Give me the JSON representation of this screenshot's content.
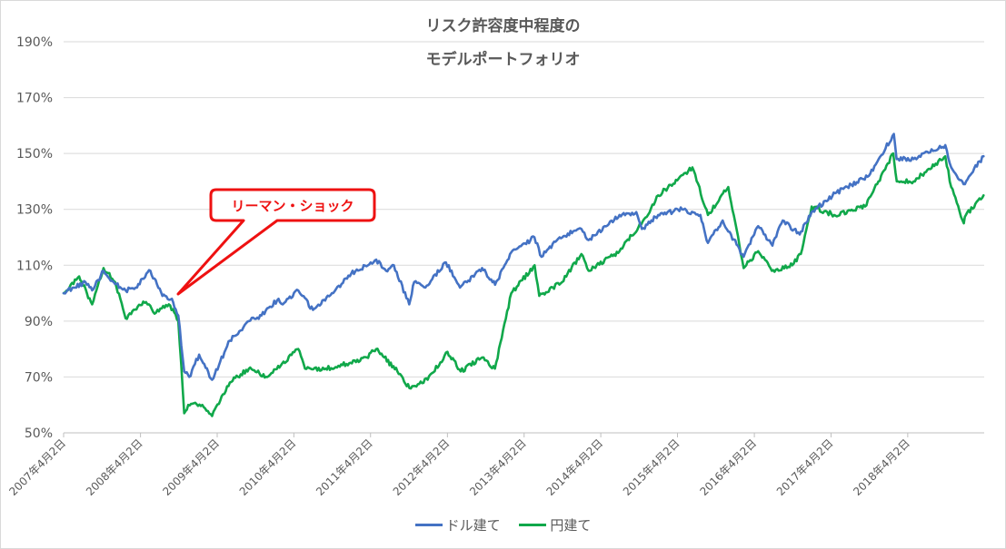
{
  "chart_data": {
    "type": "line",
    "title_lines": [
      "リスク許容度中程度の",
      "モデルポートフォリオ"
    ],
    "y_ticks": [
      "50%",
      "70%",
      "90%",
      "110%",
      "130%",
      "150%",
      "170%",
      "190%"
    ],
    "ylim": [
      50,
      190
    ],
    "x_ticks": [
      "2007年4月2日",
      "2008年4月2日",
      "2009年4月2日",
      "2010年4月2日",
      "2011年4月2日",
      "2012年4月2日",
      "2013年4月2日",
      "2014年4月2日",
      "2015年4月2日",
      "2016年4月2日",
      "2017年4月2日",
      "2018年4月2日"
    ],
    "xlim": [
      "2007-04-02",
      "2019-04-01"
    ],
    "grid": true,
    "legend_position": "bottom",
    "annotation": {
      "text": "リーマン・ショック",
      "color": "#ee1111",
      "date": "2008-09-15"
    },
    "series": [
      {
        "name": "ドル建て",
        "color": "#4472c4",
        "points": [
          [
            "2007-04-02",
            100
          ],
          [
            "2007-05-20",
            102
          ],
          [
            "2007-07-15",
            104
          ],
          [
            "2007-08-16",
            101
          ],
          [
            "2007-10-09",
            108
          ],
          [
            "2007-11-26",
            104
          ],
          [
            "2008-01-22",
            101
          ],
          [
            "2008-03-10",
            102
          ],
          [
            "2008-05-19",
            108
          ],
          [
            "2008-07-15",
            99
          ],
          [
            "2008-08-29",
            98
          ],
          [
            "2008-09-29",
            92
          ],
          [
            "2008-10-27",
            72
          ],
          [
            "2008-11-20",
            70
          ],
          [
            "2009-01-06",
            78
          ],
          [
            "2009-03-09",
            69
          ],
          [
            "2009-06-01",
            83
          ],
          [
            "2009-08-31",
            90
          ],
          [
            "2009-10-30",
            92
          ],
          [
            "2010-01-19",
            98
          ],
          [
            "2010-02-08",
            96
          ],
          [
            "2010-04-23",
            101
          ],
          [
            "2010-07-02",
            94
          ],
          [
            "2010-09-30",
            100
          ],
          [
            "2010-12-31",
            107
          ],
          [
            "2011-04-29",
            112
          ],
          [
            "2011-06-15",
            108
          ],
          [
            "2011-07-22",
            110
          ],
          [
            "2011-10-03",
            96
          ],
          [
            "2011-10-27",
            104
          ],
          [
            "2011-12-19",
            102
          ],
          [
            "2012-03-26",
            111
          ],
          [
            "2012-06-01",
            102
          ],
          [
            "2012-09-14",
            109
          ],
          [
            "2012-11-15",
            103
          ],
          [
            "2013-01-25",
            114
          ],
          [
            "2013-05-21",
            120
          ],
          [
            "2013-06-24",
            113
          ],
          [
            "2013-09-18",
            120
          ],
          [
            "2013-12-31",
            123
          ],
          [
            "2014-02-03",
            119
          ],
          [
            "2014-06-30",
            128
          ],
          [
            "2014-09-18",
            129
          ],
          [
            "2014-10-15",
            123
          ],
          [
            "2014-12-31",
            128
          ],
          [
            "2015-04-24",
            130
          ],
          [
            "2015-07-20",
            128
          ],
          [
            "2015-08-25",
            118
          ],
          [
            "2015-11-03",
            126
          ],
          [
            "2016-02-11",
            113
          ],
          [
            "2016-04-20",
            124
          ],
          [
            "2016-06-27",
            117
          ],
          [
            "2016-08-15",
            126
          ],
          [
            "2016-11-04",
            121
          ],
          [
            "2016-12-30",
            129
          ],
          [
            "2017-04-28",
            136
          ],
          [
            "2017-09-29",
            142
          ],
          [
            "2018-01-26",
            157
          ],
          [
            "2018-02-08",
            148
          ],
          [
            "2018-04-30",
            148
          ],
          [
            "2018-09-28",
            153
          ],
          [
            "2018-10-26",
            145
          ],
          [
            "2018-12-24",
            139
          ],
          [
            "2019-03-29",
            149
          ]
        ]
      },
      {
        "name": "円建て",
        "color": "#10a84a",
        "points": [
          [
            "2007-04-02",
            100
          ],
          [
            "2007-06-15",
            106
          ],
          [
            "2007-08-16",
            96
          ],
          [
            "2007-10-09",
            109
          ],
          [
            "2007-12-03",
            104
          ],
          [
            "2008-01-22",
            91
          ],
          [
            "2008-04-15",
            97
          ],
          [
            "2008-06-15",
            93
          ],
          [
            "2008-08-15",
            96
          ],
          [
            "2008-09-29",
            90
          ],
          [
            "2008-10-27",
            57
          ],
          [
            "2008-11-15",
            60
          ],
          [
            "2009-01-21",
            60
          ],
          [
            "2009-03-09",
            56
          ],
          [
            "2009-06-01",
            68
          ],
          [
            "2009-08-31",
            73
          ],
          [
            "2009-11-27",
            70
          ],
          [
            "2010-04-23",
            80
          ],
          [
            "2010-05-25",
            73
          ],
          [
            "2010-08-31",
            73
          ],
          [
            "2010-10-31",
            74
          ],
          [
            "2011-03-15",
            77
          ],
          [
            "2011-04-29",
            80
          ],
          [
            "2011-08-08",
            72
          ],
          [
            "2011-10-04",
            66
          ],
          [
            "2011-12-30",
            69
          ],
          [
            "2012-04-02",
            79
          ],
          [
            "2012-06-04",
            72
          ],
          [
            "2012-09-14",
            77
          ],
          [
            "2012-11-14",
            73
          ],
          [
            "2013-01-31",
            100
          ],
          [
            "2013-05-22",
            110
          ],
          [
            "2013-06-13",
            99
          ],
          [
            "2013-09-30",
            104
          ],
          [
            "2013-12-31",
            114
          ],
          [
            "2014-02-03",
            108
          ],
          [
            "2014-06-30",
            115
          ],
          [
            "2014-10-31",
            127
          ],
          [
            "2014-12-31",
            135
          ],
          [
            "2015-06-12",
            145
          ],
          [
            "2015-08-25",
            128
          ],
          [
            "2015-11-30",
            138
          ],
          [
            "2016-02-11",
            109
          ],
          [
            "2016-04-20",
            115
          ],
          [
            "2016-06-24",
            108
          ],
          [
            "2016-09-30",
            110
          ],
          [
            "2016-11-09",
            114
          ],
          [
            "2016-12-31",
            131
          ],
          [
            "2017-04-17",
            128
          ],
          [
            "2017-09-11",
            131
          ],
          [
            "2018-01-23",
            150
          ],
          [
            "2018-02-09",
            140
          ],
          [
            "2018-04-30",
            140
          ],
          [
            "2018-09-28",
            149
          ],
          [
            "2018-10-26",
            138
          ],
          [
            "2018-12-25",
            125
          ],
          [
            "2019-01-04",
            128
          ],
          [
            "2019-03-29",
            135
          ]
        ]
      }
    ]
  }
}
